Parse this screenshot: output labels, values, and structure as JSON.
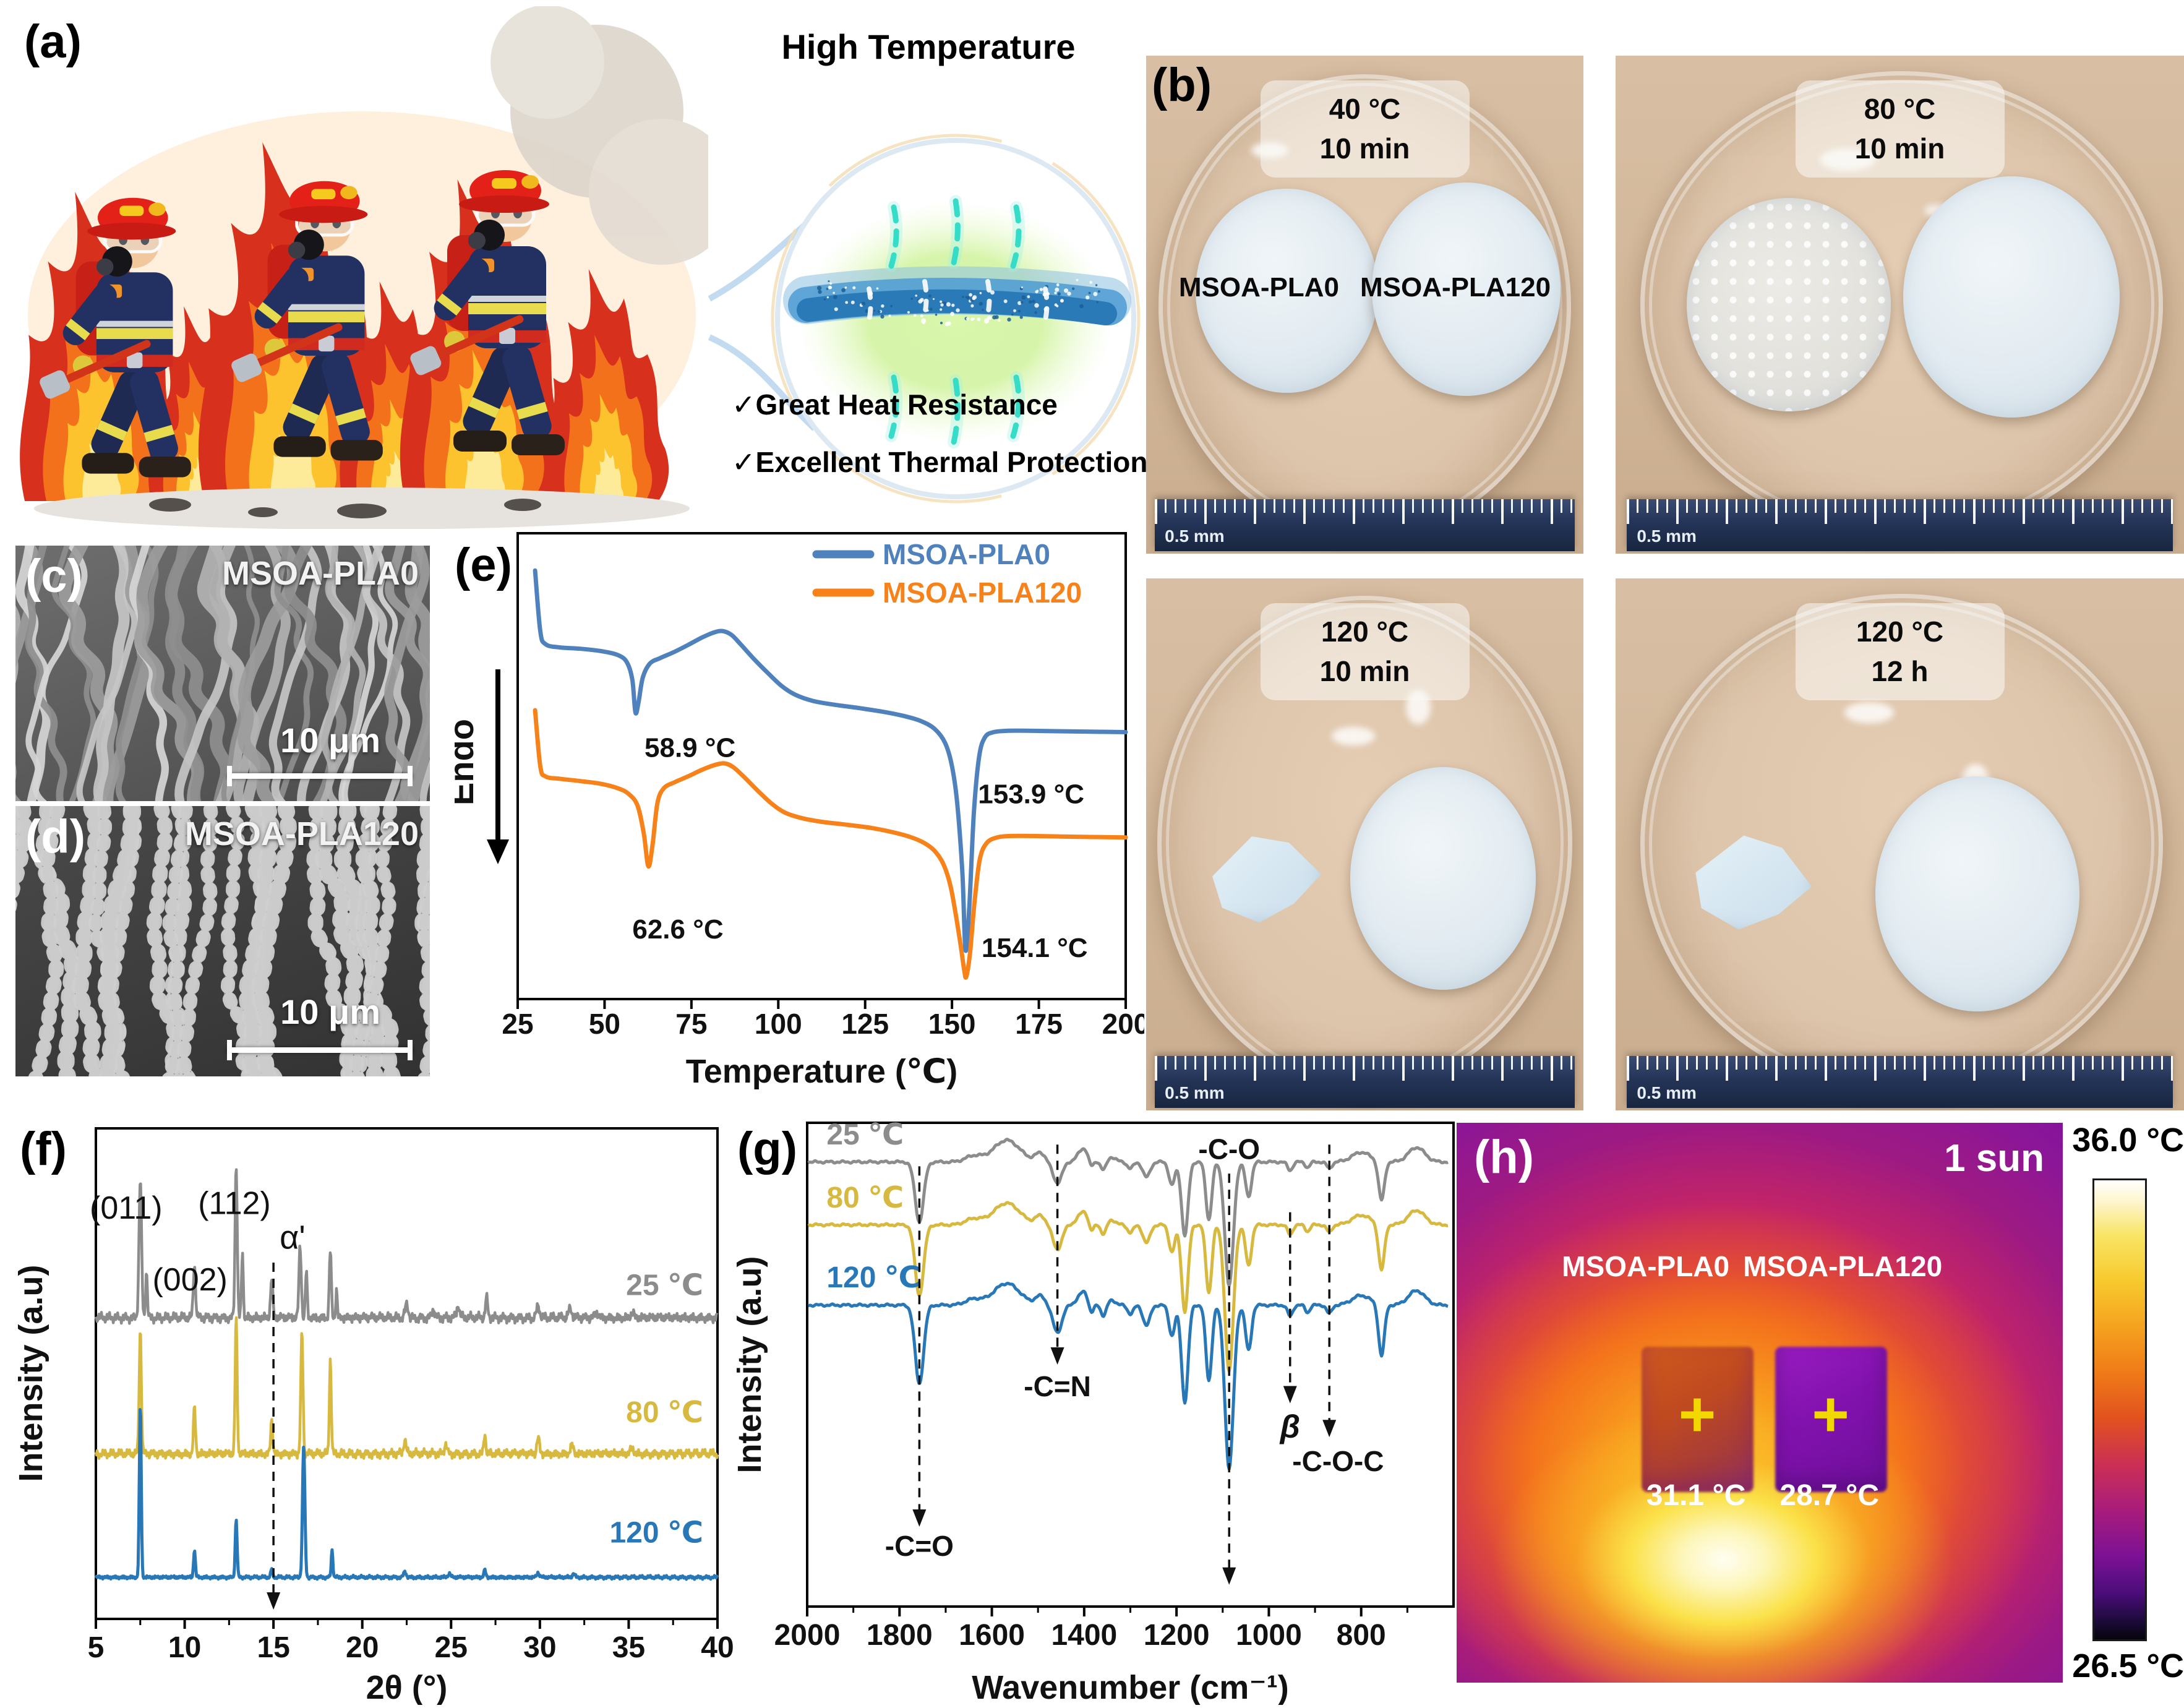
{
  "panel_a": {
    "label": "(a)",
    "callout": {
      "title": "High Temperature",
      "checks": [
        {
          "glyph": "✓",
          "text": "Great Heat Resistance"
        },
        {
          "glyph": "✓",
          "text": "Excellent Thermal Protection"
        }
      ]
    }
  },
  "panel_b": {
    "label": "(b)",
    "ruler_text": "0.5 mm",
    "photos": [
      {
        "temp": "40 °C",
        "time": "10 min",
        "labels": [
          "MSOA-PLA0",
          "MSOA-PLA120"
        ]
      },
      {
        "temp": "80 °C",
        "time": "10 min"
      },
      {
        "temp": "120 °C",
        "time": "10 min"
      },
      {
        "temp": "120 °C",
        "time": "12 h"
      }
    ]
  },
  "panel_c": {
    "label": "(c)",
    "sample": "MSOA-PLA0",
    "scalebar": "10 μm"
  },
  "panel_d": {
    "label": "(d)",
    "sample": "MSOA-PLA120",
    "scalebar": "10 μm"
  },
  "panel_e": {
    "label": "(e)"
  },
  "panel_f": {
    "label": "(f)"
  },
  "panel_g": {
    "label": "(g)"
  },
  "panel_h": {
    "label": "(h)",
    "condition": "1 sun",
    "samples": [
      "MSOA-PLA0",
      "MSOA-PLA120"
    ],
    "temps": [
      "31.1 °C",
      "28.7 °C"
    ],
    "marker": "+",
    "colorbar": {
      "max": "36.0 °C",
      "min": "26.5 °C"
    }
  },
  "chart_data": [
    {
      "id": "dsc",
      "type": "line",
      "panel": "e",
      "xlabel": "Temperature (℃)",
      "ylabel": "Endo",
      "x_range": [
        25,
        200
      ],
      "x_ticks": [
        25,
        50,
        75,
        100,
        125,
        150,
        175,
        200
      ],
      "legend_position": "top-right",
      "series": [
        {
          "name": "MSOA-PLA0",
          "color": "#4f81bd",
          "points": [
            [
              30,
              0.92
            ],
            [
              31.5,
              0.79
            ],
            [
              33,
              0.762
            ],
            [
              37,
              0.755
            ],
            [
              43,
              0.752
            ],
            [
              49,
              0.747
            ],
            [
              54,
              0.738
            ],
            [
              56.5,
              0.722
            ],
            [
              58,
              0.685
            ],
            [
              58.9,
              0.615
            ],
            [
              59.8,
              0.638
            ],
            [
              61,
              0.69
            ],
            [
              63,
              0.72
            ],
            [
              66,
              0.732
            ],
            [
              70,
              0.745
            ],
            [
              74,
              0.76
            ],
            [
              78,
              0.776
            ],
            [
              81.5,
              0.787
            ],
            [
              84,
              0.79
            ],
            [
              86.5,
              0.782
            ],
            [
              89,
              0.763
            ],
            [
              93,
              0.73
            ],
            [
              97,
              0.7
            ],
            [
              101,
              0.672
            ],
            [
              105,
              0.653
            ],
            [
              110,
              0.64
            ],
            [
              116,
              0.632
            ],
            [
              123,
              0.625
            ],
            [
              130,
              0.617
            ],
            [
              136,
              0.608
            ],
            [
              141,
              0.597
            ],
            [
              145,
              0.58
            ],
            [
              148,
              0.55
            ],
            [
              150,
              0.5
            ],
            [
              151.5,
              0.42
            ],
            [
              153,
              0.27
            ],
            [
              153.9,
              0.105
            ],
            [
              155,
              0.2
            ],
            [
              156.3,
              0.4
            ],
            [
              157.8,
              0.52
            ],
            [
              159.5,
              0.562
            ],
            [
              162,
              0.573
            ],
            [
              166,
              0.576
            ],
            [
              172,
              0.576
            ],
            [
              180,
              0.575
            ],
            [
              190,
              0.574
            ],
            [
              200,
              0.573
            ]
          ]
        },
        {
          "name": "MSOA-PLA120",
          "color": "#f8821a",
          "points": [
            [
              30,
              0.62
            ],
            [
              31.5,
              0.5
            ],
            [
              33,
              0.478
            ],
            [
              37,
              0.473
            ],
            [
              43,
              0.468
            ],
            [
              49,
              0.462
            ],
            [
              54,
              0.452
            ],
            [
              57,
              0.44
            ],
            [
              59.5,
              0.415
            ],
            [
              61.3,
              0.355
            ],
            [
              62.6,
              0.285
            ],
            [
              63.8,
              0.33
            ],
            [
              65.2,
              0.42
            ],
            [
              67,
              0.452
            ],
            [
              70,
              0.465
            ],
            [
              74,
              0.478
            ],
            [
              78,
              0.492
            ],
            [
              81.5,
              0.502
            ],
            [
              84.5,
              0.506
            ],
            [
              87,
              0.498
            ],
            [
              90,
              0.478
            ],
            [
              94,
              0.448
            ],
            [
              98,
              0.42
            ],
            [
              102,
              0.4
            ],
            [
              107,
              0.388
            ],
            [
              113,
              0.38
            ],
            [
              120,
              0.374
            ],
            [
              127,
              0.367
            ],
            [
              133,
              0.358
            ],
            [
              138,
              0.348
            ],
            [
              142,
              0.335
            ],
            [
              145,
              0.318
            ],
            [
              147.5,
              0.29
            ],
            [
              149.5,
              0.245
            ],
            [
              151,
              0.185
            ],
            [
              152.5,
              0.115
            ],
            [
              153.5,
              0.063
            ],
            [
              154.1,
              0.048
            ],
            [
              155.2,
              0.1
            ],
            [
              156.5,
              0.21
            ],
            [
              158,
              0.3
            ],
            [
              160,
              0.335
            ],
            [
              163,
              0.347
            ],
            [
              167,
              0.35
            ],
            [
              173,
              0.35
            ],
            [
              181,
              0.349
            ],
            [
              190,
              0.348
            ],
            [
              200,
              0.347
            ]
          ]
        }
      ],
      "annotations": [
        {
          "text": "58.9 °C",
          "x": 61.5,
          "y": 0.52
        },
        {
          "text": "153.9 °C",
          "x": 157.5,
          "y": 0.42
        },
        {
          "text": "62.6 °C",
          "x": 58,
          "y": 0.13
        },
        {
          "text": "154.1 °C",
          "x": 158.5,
          "y": 0.09
        }
      ]
    },
    {
      "id": "xrd",
      "type": "line",
      "panel": "f",
      "xlabel": "2θ (°)",
      "ylabel": "Intensity (a.u)",
      "x_range": [
        5,
        40
      ],
      "x_ticks": [
        5,
        10,
        15,
        20,
        25,
        30,
        35,
        40
      ],
      "series": [
        {
          "name": "25 ℃",
          "color": "#8c8c8c",
          "baseline": 0.651,
          "noise": 0.01,
          "label_x": 39.2,
          "label_y": 0.7,
          "peaks": [
            [
              7.5,
              0.3,
              0.1
            ],
            [
              7.85,
              0.1,
              0.07
            ],
            [
              10.55,
              0.115,
              0.09
            ],
            [
              12.9,
              0.335,
              0.085
            ],
            [
              13.25,
              0.14,
              0.07
            ],
            [
              14.9,
              0.085,
              0.09
            ],
            [
              16.5,
              0.155,
              0.09
            ],
            [
              16.85,
              0.1,
              0.07
            ],
            [
              18.2,
              0.145,
              0.08
            ],
            [
              18.55,
              0.06,
              0.06
            ],
            [
              22.5,
              0.03,
              0.12
            ],
            [
              24.0,
              0.018,
              0.12
            ],
            [
              25.4,
              0.028,
              0.1
            ],
            [
              27.0,
              0.042,
              0.09
            ],
            [
              29.9,
              0.025,
              0.12
            ],
            [
              31.7,
              0.018,
              0.14
            ],
            [
              33.2,
              0.012,
              0.14
            ],
            [
              35.2,
              0.012,
              0.12
            ]
          ]
        },
        {
          "name": "80 ℃",
          "color": "#d8b93f",
          "baseline": 0.357,
          "noise": 0.009,
          "label_x": 39.2,
          "label_y": 0.425,
          "peaks": [
            [
              7.5,
              0.27,
              0.085
            ],
            [
              10.55,
              0.1,
              0.08
            ],
            [
              12.9,
              0.295,
              0.08
            ],
            [
              14.9,
              0.075,
              0.08
            ],
            [
              16.6,
              0.265,
              0.085
            ],
            [
              18.2,
              0.205,
              0.075
            ],
            [
              22.4,
              0.03,
              0.1
            ],
            [
              24.7,
              0.022,
              0.1
            ],
            [
              26.9,
              0.042,
              0.08
            ],
            [
              29.9,
              0.035,
              0.1
            ],
            [
              31.8,
              0.018,
              0.12
            ],
            [
              35.2,
              0.014,
              0.12
            ]
          ]
        },
        {
          "name": "120 ℃",
          "color": "#2878b8",
          "baseline": 0.09,
          "noise": 0.0035,
          "label_x": 39.2,
          "label_y": 0.165,
          "peaks": [
            [
              7.5,
              0.375,
              0.075
            ],
            [
              10.55,
              0.06,
              0.07
            ],
            [
              12.9,
              0.125,
              0.075
            ],
            [
              14.9,
              0.018,
              0.07
            ],
            [
              16.7,
              0.285,
              0.095
            ],
            [
              18.3,
              0.06,
              0.065
            ],
            [
              22.4,
              0.012,
              0.1
            ],
            [
              24.9,
              0.008,
              0.1
            ],
            [
              26.9,
              0.015,
              0.08
            ],
            [
              29.9,
              0.01,
              0.1
            ],
            [
              31.9,
              0.007,
              0.1
            ]
          ]
        }
      ],
      "peak_labels": [
        {
          "text": "(011)",
          "x": 6.7,
          "y": 0.865
        },
        {
          "text": "(002)",
          "x": 10.3,
          "y": 0.71
        },
        {
          "text": "(112)",
          "x": 12.8,
          "y": 0.875
        }
      ],
      "ref_line": {
        "x": 15.0,
        "label": "α'",
        "label_y": 0.8,
        "top": 0.77,
        "bottom": 0.02
      }
    },
    {
      "id": "ftir",
      "type": "line",
      "panel": "g",
      "xlabel": "Wavenumber (cm⁻¹)",
      "ylabel": "Intensity (a.u)",
      "x_range": [
        2000,
        600
      ],
      "x_ticks": [
        2000,
        1800,
        1600,
        1400,
        1200,
        1000,
        800
      ],
      "x_minor_ticks": [
        1900,
        1700,
        1500,
        1300,
        1100,
        900,
        700
      ],
      "series": [
        {
          "name": "25 ℃",
          "color": "#8c8c8c",
          "baseline": 0.919,
          "scale": 0.95,
          "label_y": 0.955
        },
        {
          "name": "80 ℃",
          "color": "#d8b93f",
          "baseline": 0.789,
          "scale": 1.12,
          "label_y": 0.825
        },
        {
          "name": "120 ℃",
          "color": "#2878b8",
          "baseline": 0.623,
          "scale": 1.25,
          "label_y": 0.66
        }
      ],
      "dips": [
        [
          1757,
          0.13,
          13
        ],
        [
          1458,
          0.045,
          14
        ],
        [
          1385,
          0.022,
          8
        ],
        [
          1358,
          0.018,
          8
        ],
        [
          1300,
          0.014,
          9
        ],
        [
          1265,
          0.033,
          11
        ],
        [
          1210,
          0.05,
          9
        ],
        [
          1182,
          0.16,
          10
        ],
        [
          1130,
          0.125,
          9
        ],
        [
          1086,
          0.27,
          13
        ],
        [
          1044,
          0.075,
          9
        ],
        [
          954,
          0.018,
          8
        ],
        [
          916,
          0.012,
          7
        ],
        [
          869,
          0.014,
          8
        ],
        [
          756,
          0.085,
          9
        ]
      ],
      "humps": [
        [
          1640,
          0.012,
          25
        ],
        [
          1568,
          0.045,
          40
        ],
        [
          1495,
          0.018,
          15
        ],
        [
          1400,
          0.028,
          18
        ],
        [
          1340,
          0.01,
          12
        ],
        [
          800,
          0.02,
          28
        ],
        [
          680,
          0.03,
          25
        ]
      ],
      "noise": 0.003,
      "annotations": [
        {
          "text": "-C=O",
          "x": 1757,
          "line_top": 0.91,
          "line_bottom": 0.165,
          "label_y": 0.105
        },
        {
          "text": "-C=N",
          "x": 1458,
          "line_top": 0.955,
          "line_bottom": 0.5,
          "label_y": 0.435
        },
        {
          "text": "-C-O",
          "x": 1086,
          "line_top": 0.895,
          "line_bottom": 0.045,
          "label_y": 0.925
        },
        {
          "text": "β",
          "x": 954,
          "line_top": 0.815,
          "line_bottom": 0.42,
          "label_y": 0.35,
          "italic": true
        },
        {
          "text": "-C-O-C",
          "x": 869,
          "line_top": 0.955,
          "line_bottom": 0.35,
          "label_y": 0.28,
          "label_x": 850
        }
      ]
    }
  ]
}
